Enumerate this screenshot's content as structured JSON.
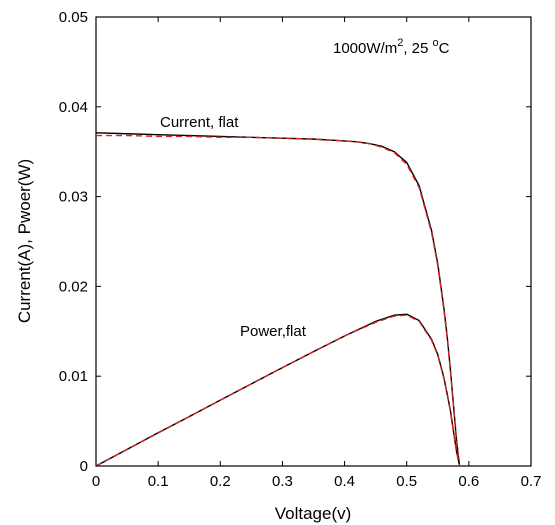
{
  "chart_data": {
    "type": "line",
    "title": "",
    "xlabel": "Voltage(v)",
    "ylabel": "Current(A), Pwoer(W)",
    "xlim": [
      0,
      0.7
    ],
    "ylim": [
      0,
      0.05
    ],
    "x_ticks": [
      0,
      0.1,
      0.2,
      0.3,
      0.4,
      0.5,
      0.6,
      0.7
    ],
    "x_tick_labels": [
      "0",
      "0.1",
      "0.2",
      "0.3",
      "0.4",
      "0.5",
      "0.6",
      "0.7"
    ],
    "y_ticks": [
      0,
      0.01,
      0.02,
      0.03,
      0.04,
      0.05
    ],
    "y_tick_labels": [
      "0",
      "0.01",
      "0.02",
      "0.03",
      "0.04",
      "0.05"
    ],
    "grid": false,
    "annotations": {
      "condition_main": "1000W/m",
      "condition_exp": "2",
      "condition_mid": ", 25 ",
      "condition_deg": "o",
      "condition_unit": "C",
      "current_label": "Current, flat",
      "power_label": "Power,flat"
    },
    "series": [
      {
        "color": "#000000",
        "dash": "solid",
        "x": [
          0,
          0.05,
          0.1,
          0.15,
          0.2,
          0.25,
          0.3,
          0.35,
          0.4,
          0.42,
          0.44,
          0.46,
          0.48,
          0.5,
          0.52,
          0.54,
          0.55,
          0.56,
          0.565,
          0.57,
          0.575,
          0.58,
          0.585
        ],
        "values": [
          0.0371,
          0.037,
          0.0369,
          0.0368,
          0.0367,
          0.0366,
          0.0365,
          0.0364,
          0.0362,
          0.0361,
          0.0359,
          0.0356,
          0.035,
          0.0338,
          0.0312,
          0.0262,
          0.0225,
          0.0175,
          0.0145,
          0.011,
          0.007,
          0.003,
          0.0
        ]
      },
      {
        "color": "#e02020",
        "dash": "dashed",
        "x": [
          0,
          0.05,
          0.1,
          0.15,
          0.2,
          0.25,
          0.3,
          0.35,
          0.4,
          0.42,
          0.44,
          0.46,
          0.48,
          0.5,
          0.52,
          0.54,
          0.55,
          0.56,
          0.565,
          0.57,
          0.575,
          0.58,
          0.585
        ],
        "values": [
          0.0368,
          0.0368,
          0.0367,
          0.0367,
          0.0366,
          0.0366,
          0.0365,
          0.0364,
          0.0362,
          0.0361,
          0.0359,
          0.0355,
          0.0349,
          0.0336,
          0.031,
          0.026,
          0.0223,
          0.0173,
          0.0143,
          0.0108,
          0.0068,
          0.0028,
          0.0
        ]
      },
      {
        "color": "#000000",
        "dash": "solid",
        "x": [
          0,
          0.05,
          0.1,
          0.15,
          0.2,
          0.25,
          0.3,
          0.35,
          0.4,
          0.45,
          0.48,
          0.5,
          0.52,
          0.54,
          0.55,
          0.56,
          0.57,
          0.58,
          0.585
        ],
        "values": [
          0.0,
          0.00185,
          0.0037,
          0.0055,
          0.00734,
          0.00915,
          0.01095,
          0.01274,
          0.01448,
          0.0161,
          0.0168,
          0.0169,
          0.0162,
          0.0141,
          0.0124,
          0.0098,
          0.0063,
          0.0017,
          0.0
        ]
      },
      {
        "color": "#e02020",
        "dash": "dashed",
        "x": [
          0,
          0.05,
          0.1,
          0.15,
          0.2,
          0.25,
          0.3,
          0.35,
          0.4,
          0.45,
          0.48,
          0.5,
          0.52,
          0.54,
          0.55,
          0.56,
          0.57,
          0.58,
          0.585
        ],
        "values": [
          0.0,
          0.00184,
          0.00367,
          0.0055,
          0.00732,
          0.00915,
          0.01095,
          0.01274,
          0.01448,
          0.016,
          0.0167,
          0.0168,
          0.0161,
          0.014,
          0.0123,
          0.0097,
          0.0062,
          0.0016,
          0.0
        ]
      }
    ]
  }
}
